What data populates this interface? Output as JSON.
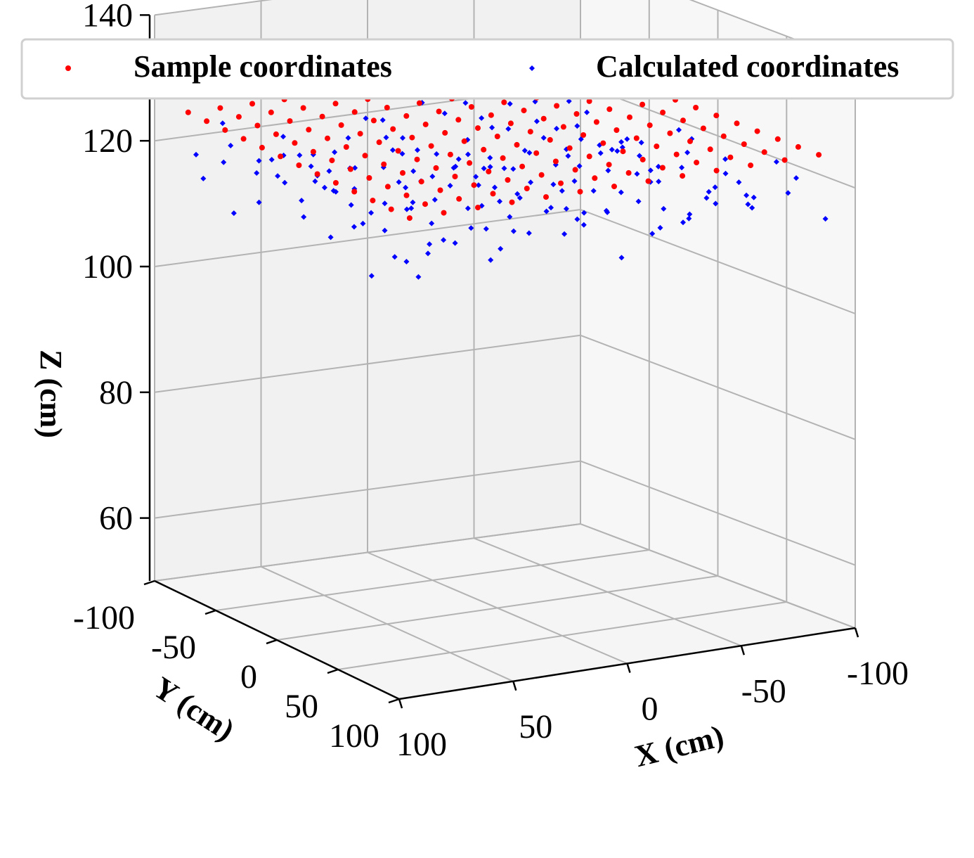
{
  "chart_data": {
    "type": "scatter",
    "title": "",
    "xlabel": "X (cm)",
    "ylabel": "Y (cm)",
    "zlabel": "Z (cm)",
    "xlim": [
      -100,
      100
    ],
    "ylim": [
      -100,
      100
    ],
    "zlim": [
      50,
      140
    ],
    "x_ticks": [
      "-100",
      "-50",
      "0",
      "50",
      "100"
    ],
    "y_ticks": [
      "-100",
      "-50",
      "0",
      "50",
      "100"
    ],
    "z_ticks": [
      "60",
      "80",
      "100",
      "120",
      "140"
    ],
    "grid": true,
    "legend_position": "top",
    "series": [
      {
        "name": "Sample coordinates",
        "color": "#ff0000",
        "marker": "dot",
        "description_of_points": "regular grid",
        "grid_x_range": [
          -90,
          90
        ],
        "grid_y_range": [
          -90,
          90
        ],
        "grid_count": 13,
        "z": 125
      },
      {
        "name": "Calculated coordinates",
        "color": "#0000ff",
        "marker": "diamond",
        "z_mean": 118
      }
    ]
  }
}
